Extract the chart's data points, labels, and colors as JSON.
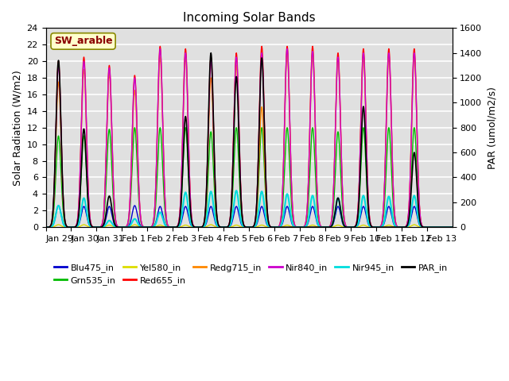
{
  "title": "Incoming Solar Bands",
  "ylabel_left": "Solar Radiation (W/m2)",
  "ylabel_right": "PAR (umol/m2/s)",
  "annotation": "SW_arable",
  "annotation_color": "#8B0000",
  "annotation_bg": "#FFFFCC",
  "xticklabels": [
    "Jan 29",
    "Jan 30",
    "Jan 31",
    "Feb 1",
    "Feb 2",
    "Feb 3",
    "Feb 4",
    "Feb 5",
    "Feb 6",
    "Feb 7",
    "Feb 8",
    "Feb 9",
    "Feb 10",
    "Feb 11",
    "Feb 12",
    "Feb 13"
  ],
  "ylim_left": [
    0,
    24
  ],
  "ylim_right": [
    0,
    1600
  ],
  "yticks_left": [
    0,
    2,
    4,
    6,
    8,
    10,
    12,
    14,
    16,
    18,
    20,
    22,
    24
  ],
  "yticks_right": [
    0,
    200,
    400,
    600,
    800,
    1000,
    1200,
    1400,
    1600
  ],
  "series": {
    "Blu475_in": {
      "color": "#0000CD",
      "lw": 1.0
    },
    "Grn535_in": {
      "color": "#00BB00",
      "lw": 1.0
    },
    "Yel580_in": {
      "color": "#DDDD00",
      "lw": 1.0
    },
    "Red655_in": {
      "color": "#FF0000",
      "lw": 1.0
    },
    "Redg715_in": {
      "color": "#FF8800",
      "lw": 1.0
    },
    "Nir840_in": {
      "color": "#CC00CC",
      "lw": 1.0
    },
    "Nir945_in": {
      "color": "#00DDDD",
      "lw": 1.5
    },
    "PAR_in": {
      "color": "#000000",
      "lw": 1.2,
      "secondary": true
    }
  },
  "bg_color": "#E0E0E0",
  "grid_color": "#FFFFFF",
  "peaks_solar": {
    "Jan 29": {
      "Red655_in": 20.0,
      "Nir840_in": 19.5,
      "Redg715_in": 17.5,
      "Grn535_in": 11.0,
      "Blu475_in": 2.6,
      "Yel580_in": 0.3,
      "Nir945_in": 2.6,
      "PAR_in": 1340
    },
    "Jan 30": {
      "Red655_in": 20.5,
      "Nir840_in": 20.0,
      "Redg715_in": 19.0,
      "Grn535_in": 11.0,
      "Blu475_in": 2.5,
      "Yel580_in": 0.3,
      "Nir945_in": 3.5,
      "PAR_in": 790
    },
    "Jan 31": {
      "Red655_in": 19.5,
      "Nir840_in": 19.2,
      "Redg715_in": 18.5,
      "Grn535_in": 11.8,
      "Blu475_in": 2.5,
      "Yel580_in": 0.25,
      "Nir945_in": 0.8,
      "PAR_in": 250
    },
    "Feb 1": {
      "Red655_in": 18.3,
      "Nir840_in": 18.0,
      "Redg715_in": 16.5,
      "Grn535_in": 12.0,
      "Blu475_in": 2.6,
      "Yel580_in": 0.3,
      "Nir945_in": 1.0,
      "PAR_in": 0
    },
    "Feb 2": {
      "Red655_in": 21.8,
      "Nir840_in": 21.5,
      "Redg715_in": 20.5,
      "Grn535_in": 12.0,
      "Blu475_in": 2.5,
      "Yel580_in": 0.25,
      "Nir945_in": 1.8,
      "PAR_in": 0
    },
    "Feb 3": {
      "Red655_in": 21.5,
      "Nir840_in": 21.0,
      "Redg715_in": 20.5,
      "Grn535_in": 12.0,
      "Blu475_in": 2.5,
      "Yel580_in": 0.25,
      "Nir945_in": 4.2,
      "PAR_in": 890
    },
    "Feb 4": {
      "Red655_in": 20.5,
      "Nir840_in": 20.2,
      "Redg715_in": 18.0,
      "Grn535_in": 11.5,
      "Blu475_in": 2.5,
      "Yel580_in": 0.3,
      "Nir945_in": 4.3,
      "PAR_in": 1400
    },
    "Feb 5": {
      "Red655_in": 21.0,
      "Nir840_in": 20.5,
      "Redg715_in": 19.5,
      "Grn535_in": 12.0,
      "Blu475_in": 2.5,
      "Yel580_in": 0.25,
      "Nir945_in": 4.4,
      "PAR_in": 1210
    },
    "Feb 6": {
      "Red655_in": 21.8,
      "Nir840_in": 21.0,
      "Redg715_in": 14.5,
      "Grn535_in": 12.0,
      "Blu475_in": 2.5,
      "Yel580_in": 0.25,
      "Nir945_in": 4.3,
      "PAR_in": 1360
    },
    "Feb 7": {
      "Red655_in": 21.8,
      "Nir840_in": 21.5,
      "Redg715_in": 21.0,
      "Grn535_in": 12.0,
      "Blu475_in": 2.5,
      "Yel580_in": 0.25,
      "Nir945_in": 4.0,
      "PAR_in": 0
    },
    "Feb 8": {
      "Red655_in": 21.8,
      "Nir840_in": 21.2,
      "Redg715_in": 21.0,
      "Grn535_in": 12.0,
      "Blu475_in": 2.5,
      "Yel580_in": 0.25,
      "Nir945_in": 3.8,
      "PAR_in": 0
    },
    "Feb 9": {
      "Red655_in": 21.0,
      "Nir840_in": 20.5,
      "Redg715_in": 20.3,
      "Grn535_in": 11.5,
      "Blu475_in": 2.5,
      "Yel580_in": 0.25,
      "Nir945_in": 3.5,
      "PAR_in": 235
    },
    "Feb 10": {
      "Red655_in": 21.5,
      "Nir840_in": 21.0,
      "Redg715_in": 20.5,
      "Grn535_in": 12.0,
      "Blu475_in": 2.5,
      "Yel580_in": 0.25,
      "Nir945_in": 3.8,
      "PAR_in": 970
    },
    "Feb 11": {
      "Red655_in": 21.5,
      "Nir840_in": 21.0,
      "Redg715_in": 20.5,
      "Grn535_in": 12.0,
      "Blu475_in": 2.5,
      "Yel580_in": 0.25,
      "Nir945_in": 3.7,
      "PAR_in": 0
    },
    "Feb 12": {
      "Red655_in": 21.5,
      "Nir840_in": 21.0,
      "Redg715_in": 20.5,
      "Grn535_in": 12.0,
      "Blu475_in": 2.5,
      "Yel580_in": 0.3,
      "Nir945_in": 3.8,
      "PAR_in": 600
    },
    "Feb 13": {
      "Red655_in": 0.0,
      "Nir840_in": 0.0,
      "Redg715_in": 0.0,
      "Grn535_in": 0.0,
      "Blu475_in": 0.0,
      "Yel580_in": 0.0,
      "Nir945_in": 0.0,
      "PAR_in": 0
    }
  }
}
